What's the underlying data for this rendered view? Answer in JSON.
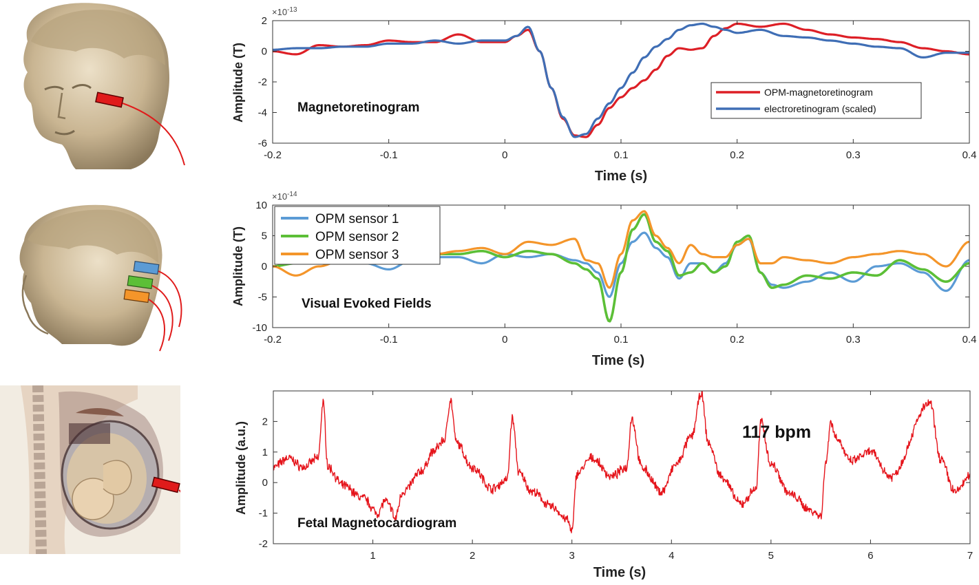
{
  "colors": {
    "opm_mrg": "#dd1f26",
    "erg": "#3f6eb5",
    "sensor1": "#5b9bd5",
    "sensor2": "#5cbf37",
    "sensor3": "#f4952a",
    "fmcg": "#e5141b",
    "skin": "#d5c3a4"
  },
  "illustrations": [
    {
      "name": "david-head-front-icon"
    },
    {
      "name": "david-head-side-icon"
    },
    {
      "name": "pregnancy-anatomy-icon"
    }
  ],
  "chart_data": [
    {
      "type": "line",
      "annotation": "Magnetoretinogram",
      "xlabel": "Time (s)",
      "ylabel": "Amplitude (T)",
      "exponent": "×10",
      "exponent_power": "-13",
      "xlim": [
        -0.2,
        0.4
      ],
      "ylim": [
        -6,
        2
      ],
      "xticks": [
        "-0.2",
        "-0.1",
        "0",
        "0.1",
        "0.2",
        "0.3",
        "0.4"
      ],
      "yticks": [
        "2",
        "0",
        "-2",
        "-4",
        "-6"
      ],
      "legend_position": "bottom-right",
      "grid": false,
      "series": [
        {
          "name": "OPM-magnetoretinogram",
          "color_key": "opm_mrg",
          "x": [
            -0.2,
            -0.18,
            -0.16,
            -0.14,
            -0.12,
            -0.1,
            -0.08,
            -0.06,
            -0.04,
            -0.02,
            0,
            0.01,
            0.02,
            0.03,
            0.04,
            0.05,
            0.06,
            0.07,
            0.08,
            0.09,
            0.1,
            0.11,
            0.12,
            0.13,
            0.14,
            0.15,
            0.16,
            0.17,
            0.18,
            0.19,
            0.2,
            0.22,
            0.24,
            0.26,
            0.28,
            0.3,
            0.32,
            0.34,
            0.36,
            0.38,
            0.4
          ],
          "y": [
            0,
            -0.2,
            0.4,
            0.3,
            0.4,
            0.7,
            0.6,
            0.6,
            1.1,
            0.6,
            0.6,
            1.0,
            1.4,
            0.0,
            -2.4,
            -4.4,
            -5.5,
            -5.6,
            -4.8,
            -3.7,
            -3.0,
            -2.4,
            -1.9,
            -1.2,
            -0.3,
            0.2,
            0.1,
            0.2,
            1.0,
            1.5,
            1.8,
            1.6,
            1.8,
            1.4,
            1.1,
            0.9,
            0.8,
            0.6,
            0.2,
            0.0,
            -0.2
          ]
        },
        {
          "name": "electroretinogram (scaled)",
          "color_key": "erg",
          "x": [
            -0.2,
            -0.18,
            -0.16,
            -0.14,
            -0.12,
            -0.1,
            -0.08,
            -0.06,
            -0.04,
            -0.02,
            0,
            0.01,
            0.02,
            0.03,
            0.04,
            0.05,
            0.06,
            0.07,
            0.08,
            0.09,
            0.1,
            0.11,
            0.12,
            0.13,
            0.14,
            0.15,
            0.16,
            0.17,
            0.18,
            0.19,
            0.2,
            0.22,
            0.24,
            0.26,
            0.28,
            0.3,
            0.32,
            0.34,
            0.36,
            0.38,
            0.4
          ],
          "y": [
            0.1,
            0.2,
            0.2,
            0.3,
            0.3,
            0.5,
            0.5,
            0.7,
            0.5,
            0.7,
            0.7,
            1.0,
            1.6,
            0.0,
            -2.4,
            -4.3,
            -5.6,
            -5.4,
            -4.4,
            -3.4,
            -2.4,
            -1.4,
            -0.4,
            0.3,
            0.8,
            1.4,
            1.7,
            1.8,
            1.6,
            1.4,
            1.2,
            1.4,
            1.0,
            0.9,
            0.7,
            0.5,
            0.3,
            0.2,
            -0.4,
            -0.1,
            -0.1
          ]
        }
      ]
    },
    {
      "type": "line",
      "annotation": "Visual Evoked Fields",
      "xlabel": "Time (s)",
      "ylabel": "Amplitude (T)",
      "exponent": "×10",
      "exponent_power": "-14",
      "xlim": [
        -0.2,
        0.4
      ],
      "ylim": [
        -10,
        10
      ],
      "xticks": [
        "-0.2",
        "-0.1",
        "0",
        "0.1",
        "0.2",
        "0.3",
        "0.4"
      ],
      "yticks": [
        "10",
        "5",
        "0",
        "-5",
        "-10"
      ],
      "legend_position": "top-left",
      "grid": false,
      "series": [
        {
          "name": "OPM sensor 1",
          "color_key": "sensor1",
          "x": [
            -0.2,
            -0.18,
            -0.16,
            -0.14,
            -0.12,
            -0.1,
            -0.08,
            -0.06,
            -0.04,
            -0.02,
            0,
            0.02,
            0.04,
            0.06,
            0.07,
            0.08,
            0.09,
            0.1,
            0.11,
            0.12,
            0.13,
            0.14,
            0.15,
            0.16,
            0.17,
            0.18,
            0.19,
            0.2,
            0.21,
            0.22,
            0.23,
            0.24,
            0.26,
            0.28,
            0.3,
            0.32,
            0.34,
            0.36,
            0.38,
            0.4
          ],
          "y": [
            0,
            0.5,
            0.5,
            1.0,
            0.5,
            -0.5,
            1.0,
            1.5,
            1.5,
            0.5,
            2.0,
            1.5,
            2.0,
            1.0,
            0.5,
            -1.0,
            -5.0,
            0.5,
            4.0,
            5.5,
            3.0,
            1.5,
            -2.0,
            0.5,
            0.5,
            -1.0,
            0.5,
            3.5,
            4.5,
            -1.0,
            -3.0,
            -3.5,
            -2.5,
            -1.0,
            -2.5,
            0.0,
            0.5,
            -1.0,
            -4.0,
            1.0
          ]
        },
        {
          "name": "OPM sensor 2",
          "color_key": "sensor2",
          "x": [
            -0.2,
            -0.18,
            -0.16,
            -0.14,
            -0.12,
            -0.1,
            -0.08,
            -0.06,
            -0.04,
            -0.02,
            0,
            0.02,
            0.04,
            0.06,
            0.07,
            0.08,
            0.09,
            0.1,
            0.11,
            0.12,
            0.13,
            0.14,
            0.15,
            0.16,
            0.17,
            0.18,
            0.19,
            0.2,
            0.21,
            0.22,
            0.23,
            0.24,
            0.26,
            0.28,
            0.3,
            0.32,
            0.34,
            0.36,
            0.38,
            0.4
          ],
          "y": [
            0,
            0.5,
            0.5,
            1.0,
            0.5,
            0.5,
            1.0,
            2.0,
            2.0,
            2.5,
            1.5,
            2.5,
            2.0,
            0.5,
            -0.5,
            -2.0,
            -9.0,
            -1.0,
            6.0,
            8.5,
            4.0,
            2.5,
            -1.5,
            -1.0,
            0.5,
            -1.0,
            0.0,
            4.0,
            5.0,
            -1.0,
            -3.5,
            -3.0,
            -1.5,
            -2.0,
            -1.0,
            -1.5,
            1.0,
            -0.5,
            -2.5,
            0.5
          ]
        },
        {
          "name": "OPM sensor 3",
          "color_key": "sensor3",
          "x": [
            -0.2,
            -0.18,
            -0.16,
            -0.14,
            -0.12,
            -0.1,
            -0.08,
            -0.06,
            -0.04,
            -0.02,
            0,
            0.02,
            0.04,
            0.06,
            0.07,
            0.08,
            0.09,
            0.1,
            0.11,
            0.12,
            0.13,
            0.14,
            0.15,
            0.16,
            0.17,
            0.18,
            0.19,
            0.2,
            0.21,
            0.22,
            0.23,
            0.24,
            0.26,
            0.28,
            0.3,
            0.32,
            0.34,
            0.36,
            0.38,
            0.4
          ],
          "y": [
            0,
            -1.5,
            0.0,
            1.0,
            0.5,
            0.5,
            1.5,
            2.0,
            2.5,
            3.0,
            2.0,
            4.0,
            3.5,
            4.5,
            1.0,
            0.5,
            -3.5,
            2.0,
            7.5,
            9.0,
            5.0,
            3.0,
            0.5,
            3.5,
            2.0,
            1.5,
            1.5,
            3.5,
            4.5,
            0.5,
            0.5,
            1.5,
            1.0,
            0.5,
            1.5,
            2.0,
            2.5,
            2.0,
            0.0,
            4.0
          ]
        }
      ]
    },
    {
      "type": "line",
      "annotation": "Fetal Magnetocardiogram",
      "rate_label": "117 bpm",
      "xlabel": "Time (s)",
      "ylabel": "Amplitude (a.u.)",
      "xlim": [
        0,
        7
      ],
      "ylim": [
        -2,
        3
      ],
      "xticks": [
        "1",
        "2",
        "3",
        "4",
        "5",
        "6",
        "7"
      ],
      "yticks": [
        "2",
        "1",
        "0",
        "-1",
        "-2"
      ],
      "grid": false,
      "series": [
        {
          "name": "",
          "color_key": "fmcg",
          "noise_amplitude": 0.12,
          "x": [
            0,
            0.15,
            0.3,
            0.45,
            0.5,
            0.55,
            0.7,
            0.9,
            1.05,
            1.12,
            1.18,
            1.22,
            1.3,
            1.5,
            1.6,
            1.72,
            1.78,
            1.84,
            2.0,
            2.2,
            2.35,
            2.4,
            2.47,
            2.6,
            2.8,
            2.95,
            3.0,
            3.05,
            3.2,
            3.4,
            3.55,
            3.6,
            3.7,
            3.9,
            4.05,
            4.2,
            4.3,
            4.37,
            4.5,
            4.7,
            4.85,
            4.9,
            5.0,
            5.2,
            5.4,
            5.5,
            5.55,
            5.6,
            5.65,
            5.8,
            6.0,
            6.2,
            6.6,
            6.7,
            6.85,
            7.0
          ],
          "y": [
            0.5,
            0.8,
            0.5,
            0.8,
            2.6,
            0.5,
            -0.1,
            -0.5,
            -1.0,
            -0.6,
            -0.8,
            -1.2,
            -0.3,
            0.4,
            1.0,
            1.4,
            2.7,
            1.3,
            0.5,
            -0.2,
            0.1,
            2.1,
            0.3,
            -0.3,
            -0.8,
            -1.2,
            -1.6,
            0.3,
            0.8,
            0.2,
            0.5,
            2.1,
            0.5,
            -0.3,
            0.6,
            1.5,
            2.9,
            1.3,
            0.2,
            -0.7,
            -0.2,
            2.0,
            0.6,
            -0.4,
            -0.9,
            -1.1,
            0.6,
            2.0,
            1.5,
            0.7,
            1.0,
            0.2,
            2.6,
            0.8,
            -0.3,
            0.2
          ]
        }
      ]
    }
  ]
}
